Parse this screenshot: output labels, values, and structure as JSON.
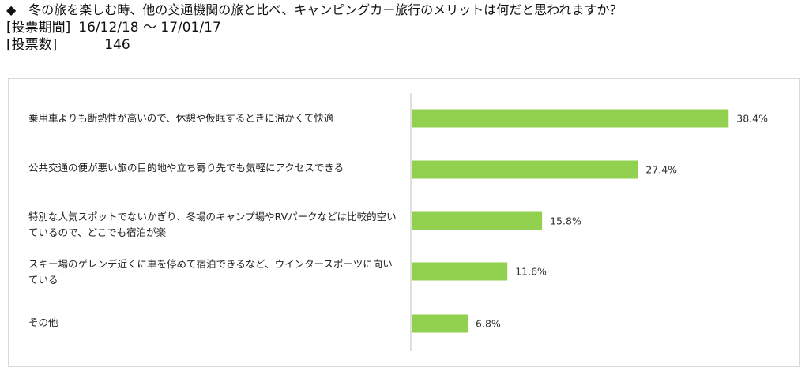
{
  "header": {
    "question": "◆　冬の旅を楽しむ時、他の交通機関の旅と比べ、キャンピングカー旅行のメリットは何だと思われますか？",
    "period_label": "[投票期間]",
    "period_value": "16/12/18 ～ 17/01/17",
    "votes_label": "[投票数]",
    "votes_value": "146"
  },
  "chart_data": {
    "type": "bar",
    "orientation": "horizontal",
    "categories": [
      "乗用車よりも断熱性が高いので、休憩や仮眠するときに温かくて快適",
      "公共交通の便が悪い旅の目的地や立ち寄り先でも気軽にアクセスできる",
      "特別な人気スポットでないかぎり、冬場のキャンプ場やRVパークなどは比較的空いているので、どこでも宿泊が楽",
      "スキー場のゲレンデ近くに車を停めて宿泊できるなど、ウインタースポーツに向いている",
      "その他"
    ],
    "values": [
      38.4,
      27.4,
      15.8,
      11.6,
      6.8
    ],
    "value_labels": [
      "38.4%",
      "27.4%",
      "15.8%",
      "11.6%",
      "6.8%"
    ],
    "xlim": [
      0,
      40
    ],
    "bar_color": "#92d050",
    "axis_color": "#bfbfbf",
    "grid": false,
    "legend": "none"
  }
}
